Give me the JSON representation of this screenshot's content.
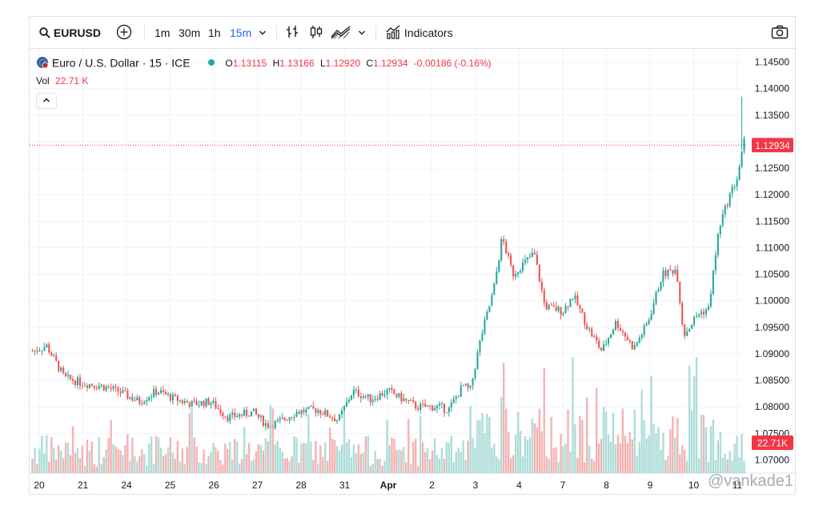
{
  "toolbar": {
    "symbol": "EURUSD",
    "intervals": [
      "1m",
      "30m",
      "1h",
      "15m"
    ],
    "active_interval": "15m",
    "indicators_label": "Indicators"
  },
  "legend": {
    "name": "Euro / U.S. Dollar · 15 · ICE",
    "o_label": "O",
    "o_value": "1.13115",
    "h_label": "H",
    "h_value": "1.13166",
    "l_label": "L",
    "l_value": "1.12920",
    "c_label": "C",
    "c_value": "1.12934",
    "change": "-0.00186 (-0.16%)",
    "vol_label": "Vol",
    "vol_value": "22.71 K"
  },
  "watermark": "@vankade1",
  "colors": {
    "up": "#26a69a",
    "down": "#ef5350",
    "up_vol": "#9fd7d1",
    "down_vol": "#f3a6a4",
    "price_tag": "#f23645"
  },
  "chart_data": {
    "type": "candlestick",
    "y_ticks": [
      "1.14500",
      "1.14000",
      "1.13500",
      "1.13000",
      "1.12500",
      "1.12000",
      "1.11500",
      "1.11000",
      "1.10500",
      "1.10000",
      "1.09500",
      "1.09000",
      "1.08500",
      "1.08000",
      "1.07500",
      "1.07000"
    ],
    "ylim": [
      1.0675,
      1.1475
    ],
    "x_ticks": [
      "20",
      "21",
      "24",
      "25",
      "26",
      "27",
      "28",
      "31",
      "Apr",
      "2",
      "3",
      "4",
      "7",
      "8",
      "9",
      "10",
      "11"
    ],
    "last_price": "1.12934",
    "last_volume": "22.71K",
    "anchors": [
      [
        0.0,
        1.0905
      ],
      [
        0.02,
        1.0915
      ],
      [
        0.045,
        1.0855
      ],
      [
        0.07,
        1.0845
      ],
      [
        0.095,
        1.084
      ],
      [
        0.12,
        1.083
      ],
      [
        0.15,
        1.081
      ],
      [
        0.175,
        1.083
      ],
      [
        0.2,
        1.0815
      ],
      [
        0.225,
        1.0805
      ],
      [
        0.25,
        1.081
      ],
      [
        0.275,
        1.078
      ],
      [
        0.31,
        1.079
      ],
      [
        0.33,
        1.0765
      ],
      [
        0.345,
        1.077
      ],
      [
        0.37,
        1.079
      ],
      [
        0.4,
        1.0795
      ],
      [
        0.43,
        1.0775
      ],
      [
        0.45,
        1.083
      ],
      [
        0.475,
        1.0815
      ],
      [
        0.5,
        1.083
      ],
      [
        0.52,
        1.0815
      ],
      [
        0.54,
        1.08
      ],
      [
        0.57,
        1.08
      ],
      [
        0.585,
        1.0795
      ],
      [
        0.605,
        1.084
      ],
      [
        0.615,
        1.083
      ],
      [
        0.63,
        1.093
      ],
      [
        0.648,
        1.102
      ],
      [
        0.66,
        1.112
      ],
      [
        0.675,
        1.105
      ],
      [
        0.705,
        1.109
      ],
      [
        0.72,
        1.099
      ],
      [
        0.745,
        1.098
      ],
      [
        0.76,
        1.101
      ],
      [
        0.78,
        1.095
      ],
      [
        0.8,
        1.0905
      ],
      [
        0.82,
        1.096
      ],
      [
        0.845,
        1.091
      ],
      [
        0.865,
        1.096
      ],
      [
        0.885,
        1.105
      ],
      [
        0.905,
        1.106
      ],
      [
        0.915,
        1.0935
      ],
      [
        0.935,
        1.0975
      ],
      [
        0.95,
        1.0985
      ],
      [
        0.965,
        1.114
      ],
      [
        0.98,
        1.12
      ],
      [
        0.99,
        1.123
      ],
      [
        1.0,
        1.13
      ]
    ]
  }
}
